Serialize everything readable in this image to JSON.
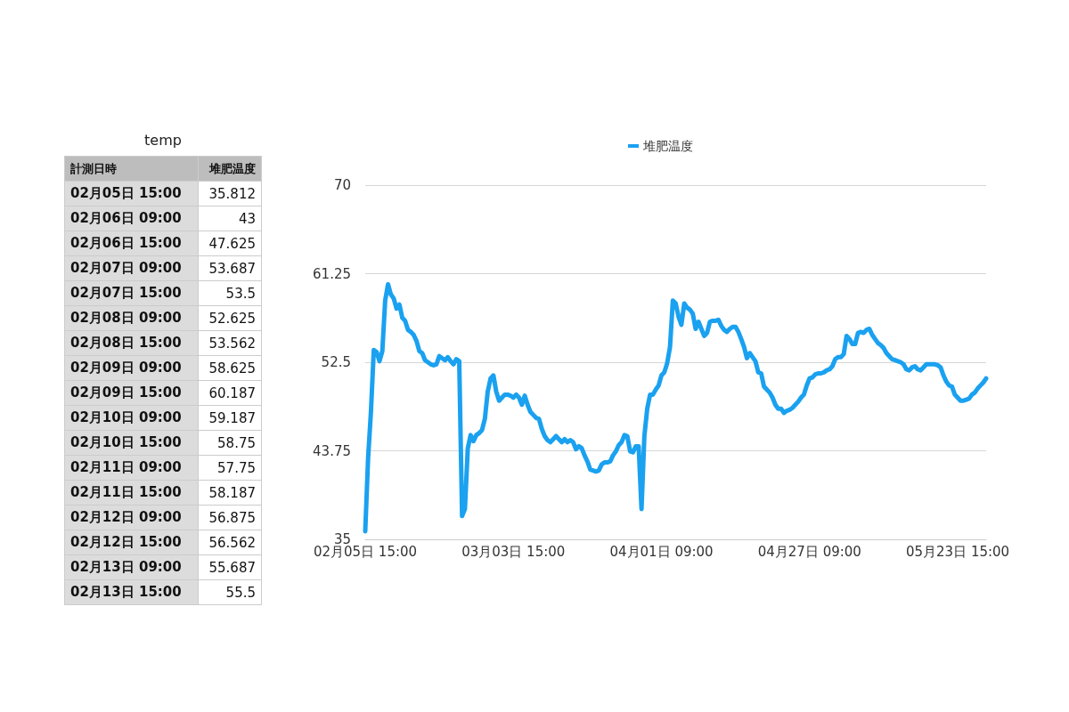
{
  "chart_data": [
    {
      "type": "other",
      "title": "temp",
      "xlabel": "計測日時",
      "ylabel": "堆肥温度",
      "categories": [
        "02月05日 15:00",
        "02月06日 09:00",
        "02月06日 15:00",
        "02月07日 09:00",
        "02月07日 15:00",
        "02月08日 09:00",
        "02月08日 15:00",
        "02月09日 09:00",
        "02月09日 15:00",
        "02月10日 09:00",
        "02月10日 15:00",
        "02月11日 09:00",
        "02月11日 15:00",
        "02月12日 09:00",
        "02月12日 15:00",
        "02月13日 09:00",
        "02月13日 15:00"
      ],
      "values": [
        35.812,
        43,
        47.625,
        53.687,
        53.5,
        52.625,
        53.562,
        58.625,
        60.187,
        59.187,
        58.75,
        57.75,
        58.187,
        56.875,
        56.562,
        55.687,
        55.5
      ],
      "data_labels": true
    },
    {
      "type": "line",
      "categories": [
        "02月05日 15:00",
        null,
        null,
        null,
        null,
        null,
        null,
        null,
        null,
        null,
        null,
        null,
        null,
        null,
        null,
        null,
        null,
        null,
        null,
        null,
        null,
        null,
        null,
        null,
        null,
        null,
        null,
        null,
        null,
        null,
        null,
        null,
        null,
        null,
        null,
        null,
        null,
        null,
        null,
        null,
        null,
        null,
        null,
        null,
        null,
        null,
        null,
        null,
        null,
        null,
        null,
        null,
        "03月03日 15:00",
        null,
        null,
        null,
        null,
        null,
        null,
        null,
        null,
        null,
        null,
        null,
        null,
        null,
        null,
        null,
        null,
        null,
        null,
        null,
        null,
        null,
        null,
        null,
        null,
        null,
        null,
        null,
        null,
        null,
        null,
        null,
        null,
        null,
        null,
        null,
        null,
        null,
        null,
        null,
        null,
        null,
        null,
        null,
        null,
        null,
        null,
        null,
        null,
        null,
        null,
        null,
        "04月01日 09:00",
        null,
        null,
        null,
        null,
        null,
        null,
        null,
        null,
        null,
        null,
        null,
        null,
        null,
        null,
        null,
        null,
        null,
        null,
        null,
        null,
        null,
        null,
        null,
        null,
        null,
        null,
        null,
        null,
        null,
        null,
        null,
        null,
        null,
        null,
        null,
        null,
        null,
        null,
        null,
        null,
        null,
        null,
        null,
        null,
        null,
        null,
        null,
        null,
        null,
        null,
        null,
        "04月27日 09:00",
        null,
        null,
        null,
        null,
        null,
        null,
        null,
        null,
        null,
        null,
        null,
        null,
        null,
        null,
        null,
        null,
        null,
        null,
        null,
        null,
        null,
        null,
        null,
        null,
        null,
        null,
        null,
        null,
        null,
        null,
        null,
        null,
        null,
        null,
        null,
        null,
        null,
        null,
        null,
        null,
        null,
        null,
        null,
        null,
        null,
        null,
        null,
        null,
        null,
        null,
        null,
        "05月23日 15:00",
        null,
        null,
        null,
        null,
        null,
        null,
        null,
        null,
        null,
        null
      ],
      "series": [
        {
          "name": "堆肥温度",
          "color": "#1aa1f0",
          "values": [
            35.8,
            43,
            47.6,
            53.7,
            53.5,
            52.6,
            53.6,
            58.6,
            60.2,
            59.2,
            58.8,
            57.8,
            58.2,
            56.9,
            56.6,
            55.7,
            55.5,
            55.2,
            54.6,
            53.6,
            53.4,
            52.7,
            52.5,
            52.3,
            52.2,
            52.3,
            53.1,
            52.9,
            52.7,
            53.0,
            52.6,
            52.3,
            52.8,
            52.6,
            37.3,
            38.0,
            44.0,
            45.3,
            44.7,
            45.3,
            45.5,
            45.8,
            46.9,
            49.6,
            50.9,
            51.2,
            49.6,
            48.7,
            49.0,
            49.3,
            49.3,
            49.2,
            49.0,
            49.3,
            49.0,
            48.3,
            49.2,
            48.3,
            47.6,
            47.3,
            47.0,
            46.9,
            45.9,
            45.2,
            44.8,
            44.6,
            44.9,
            45.2,
            44.9,
            44.6,
            44.9,
            44.6,
            44.8,
            44.6,
            43.9,
            44.2,
            44.0,
            43.3,
            42.7,
            41.9,
            41.8,
            41.7,
            41.8,
            42.4,
            42.6,
            42.6,
            42.7,
            43.3,
            43.7,
            44.3,
            44.6,
            45.3,
            45.2,
            43.7,
            43.6,
            44.2,
            44.2,
            38.0,
            45.2,
            47.9,
            49.3,
            49.3,
            49.8,
            50.2,
            51.2,
            51.5,
            52.4,
            54.0,
            58.6,
            58.3,
            57.0,
            56.2,
            58.3,
            57.9,
            57.7,
            57.3,
            55.8,
            56.5,
            55.8,
            55.1,
            55.4,
            56.5,
            56.6,
            56.6,
            56.7,
            56.1,
            55.7,
            55.5,
            55.8,
            56.0,
            56.0,
            55.5,
            54.8,
            54.0,
            52.9,
            53.4,
            53.0,
            52.6,
            51.5,
            51.4,
            50.1,
            49.8,
            49.5,
            49.0,
            48.3,
            47.9,
            47.9,
            47.5,
            47.7,
            47.8,
            48.0,
            48.3,
            48.6,
            49.0,
            49.3,
            50.2,
            50.9,
            51.0,
            51.3,
            51.4,
            51.4,
            51.5,
            51.7,
            51.8,
            52.1,
            52.8,
            53.0,
            53.0,
            53.3,
            55.1,
            54.8,
            54.3,
            54.3,
            55.4,
            55.5,
            55.4,
            55.7,
            55.8,
            55.2,
            54.8,
            54.4,
            54.2,
            53.9,
            53.4,
            53.1,
            52.8,
            52.7,
            52.6,
            52.5,
            52.3,
            51.8,
            51.7,
            52.0,
            52.1,
            51.8,
            51.7,
            52.0,
            52.3,
            52.3,
            52.3,
            52.3,
            52.2,
            52.0,
            51.2,
            50.6,
            50.2,
            50.1,
            49.3,
            49.0,
            48.7,
            48.7,
            48.8,
            48.9,
            49.3,
            49.5,
            49.9,
            50.2,
            50.5,
            50.9
          ]
        }
      ],
      "ylim": [
        35,
        70
      ],
      "yticks": [
        35,
        43.75,
        52.5,
        61.25,
        70
      ],
      "grid": "y",
      "legend": "top",
      "marker": "none",
      "line_style": "solid"
    }
  ]
}
